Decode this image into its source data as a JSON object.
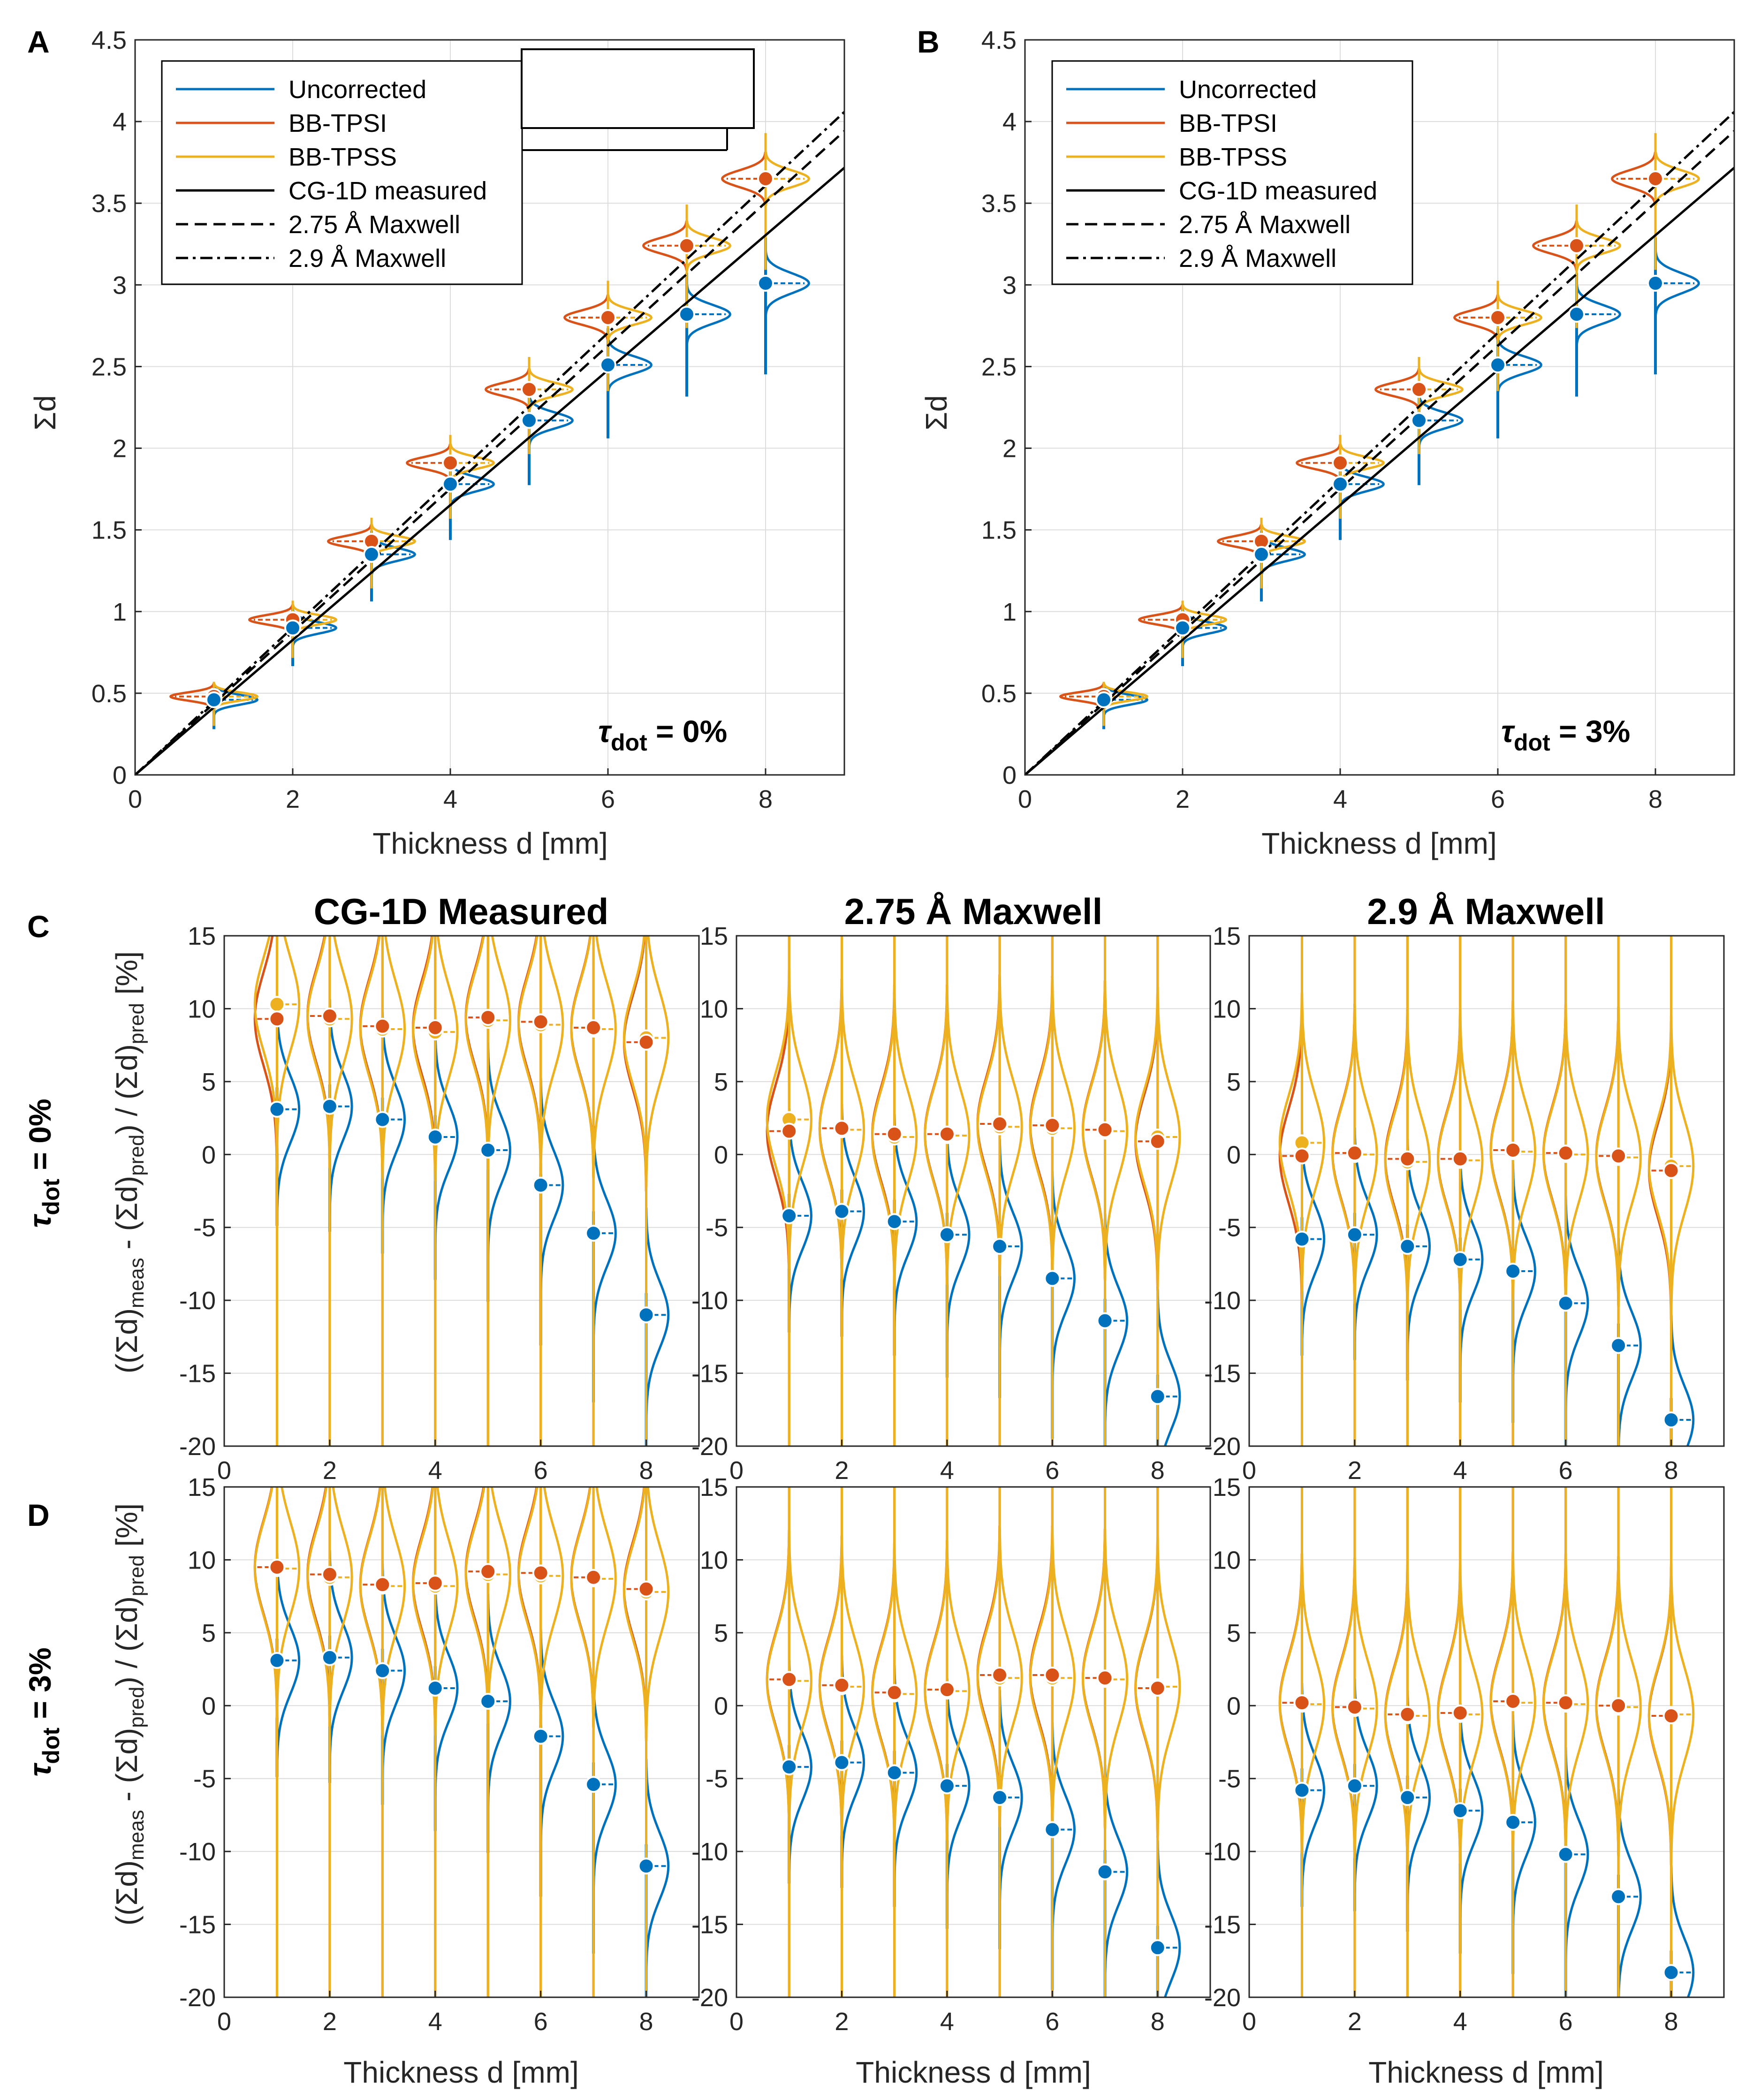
{
  "colors": {
    "uncorrected": "#0072BD",
    "bbtpsi": "#D95319",
    "bbtpss": "#EDB120",
    "black": "#000000",
    "grid": "#dcdcdc"
  },
  "labels": {
    "panel_a": "A",
    "panel_b": "B",
    "panel_c": "C",
    "panel_d": "D",
    "ylabel_top": "Σd",
    "xlabel": "Thickness d [mm]",
    "ylabel_bottom": "((Σd)meas - (Σd)pred) / (Σd)pred [%]",
    "ylabel_bottom_parts": {
      "open": "((Σd)",
      "meas": "meas",
      "mid": " - (Σd)",
      "pred1": "pred",
      "mid2": ") / (Σd)",
      "pred2": "pred",
      "close": " [%]"
    },
    "tau_a": "τdot = 0%",
    "tau_b": "τdot = 3%",
    "tau_parts": {
      "t": "τ",
      "sub": "dot",
      "eq0": " = 0%",
      "eq3": " = 3%"
    },
    "row_c": "τdot = 0%",
    "row_d": "τdot = 3%",
    "col_titles": [
      "CG-1D Measured",
      "2.75 Å Maxwell",
      "2.9 Å Maxwell"
    ]
  },
  "legend": [
    "Uncorrected",
    "BB-TPSI",
    "BB-TPSS",
    "CG-1D measured",
    "2.75 Å Maxwell",
    "2.9 Å Maxwell"
  ],
  "chart_data": [
    {
      "id": "A",
      "type": "scatter",
      "xlabel": "Thickness d [mm]",
      "ylabel": "Σd",
      "xlim": [
        0,
        9
      ],
      "ylim": [
        0,
        4.5
      ],
      "xticks": [
        0,
        2,
        4,
        6,
        8
      ],
      "yticks": [
        0,
        0.5,
        1,
        1.5,
        2,
        2.5,
        3,
        3.5,
        4,
        4.5
      ],
      "annotation": "τdot = 0%",
      "series": [
        {
          "name": "Uncorrected",
          "x": [
            1,
            2,
            3,
            4,
            5,
            6,
            7,
            8
          ],
          "values": [
            0.46,
            0.9,
            1.35,
            1.78,
            2.17,
            2.51,
            2.82,
            3.01
          ]
        },
        {
          "name": "BB-TPSI",
          "x": [
            1,
            2,
            3,
            4,
            5,
            6,
            7,
            8
          ],
          "values": [
            0.48,
            0.95,
            1.43,
            1.91,
            2.36,
            2.8,
            3.24,
            3.65
          ]
        },
        {
          "name": "BB-TPSS",
          "x": [
            1,
            2,
            3,
            4,
            5,
            6,
            7,
            8
          ],
          "values": [
            0.48,
            0.95,
            1.43,
            1.91,
            2.36,
            2.8,
            3.24,
            3.65
          ]
        }
      ],
      "lines": [
        {
          "name": "CG-1D measured",
          "slope": 0.413
        },
        {
          "name": "2.75 Å Maxwell",
          "slope": 0.438
        },
        {
          "name": "2.9 Å Maxwell",
          "slope": 0.451
        }
      ]
    },
    {
      "id": "B",
      "type": "scatter",
      "xlabel": "Thickness d [mm]",
      "ylabel": "Σd",
      "xlim": [
        0,
        9
      ],
      "ylim": [
        0,
        4.5
      ],
      "xticks": [
        0,
        2,
        4,
        6,
        8
      ],
      "yticks": [
        0,
        0.5,
        1,
        1.5,
        2,
        2.5,
        3,
        3.5,
        4,
        4.5
      ],
      "annotation": "τdot = 3%",
      "series": [
        {
          "name": "Uncorrected",
          "x": [
            1,
            2,
            3,
            4,
            5,
            6,
            7,
            8
          ],
          "values": [
            0.46,
            0.9,
            1.35,
            1.78,
            2.17,
            2.51,
            2.82,
            3.01
          ]
        },
        {
          "name": "BB-TPSI",
          "x": [
            1,
            2,
            3,
            4,
            5,
            6,
            7,
            8
          ],
          "values": [
            0.48,
            0.95,
            1.43,
            1.91,
            2.36,
            2.8,
            3.24,
            3.65
          ]
        },
        {
          "name": "BB-TPSS",
          "x": [
            1,
            2,
            3,
            4,
            5,
            6,
            7,
            8
          ],
          "values": [
            0.48,
            0.95,
            1.43,
            1.91,
            2.36,
            2.8,
            3.24,
            3.65
          ]
        }
      ],
      "lines": [
        {
          "name": "CG-1D measured",
          "slope": 0.413
        },
        {
          "name": "2.75 Å Maxwell",
          "slope": 0.438
        },
        {
          "name": "2.9 Å Maxwell",
          "slope": 0.451
        }
      ]
    },
    {
      "id": "C1",
      "type": "scatter",
      "title": "CG-1D Measured",
      "xlim": [
        0,
        9
      ],
      "ylim": [
        -20,
        15
      ],
      "xticks": [
        0,
        2,
        4,
        6,
        8
      ],
      "yticks": [
        -20,
        -15,
        -10,
        -5,
        0,
        5,
        10,
        15
      ],
      "series": [
        {
          "name": "Uncorrected",
          "x": [
            1,
            2,
            3,
            4,
            5,
            6,
            7,
            8
          ],
          "values": [
            3.1,
            3.3,
            2.4,
            1.2,
            0.3,
            -2.1,
            -5.4,
            -11.0
          ]
        },
        {
          "name": "BB-TPSI",
          "x": [
            1,
            2,
            3,
            4,
            5,
            6,
            7,
            8
          ],
          "values": [
            9.3,
            9.5,
            8.8,
            8.7,
            9.4,
            9.1,
            8.7,
            7.7
          ]
        },
        {
          "name": "BB-TPSS",
          "x": [
            1,
            2,
            3,
            4,
            5,
            6,
            7,
            8
          ],
          "values": [
            10.3,
            9.3,
            8.6,
            8.4,
            9.2,
            8.9,
            8.6,
            8.0
          ]
        }
      ]
    },
    {
      "id": "C2",
      "type": "scatter",
      "title": "2.75 Å Maxwell",
      "xlim": [
        0,
        9
      ],
      "ylim": [
        -20,
        15
      ],
      "xticks": [
        0,
        2,
        4,
        6,
        8
      ],
      "yticks": [
        -20,
        -15,
        -10,
        -5,
        0,
        5,
        10,
        15
      ],
      "series": [
        {
          "name": "Uncorrected",
          "x": [
            1,
            2,
            3,
            4,
            5,
            6,
            7,
            8
          ],
          "values": [
            -4.2,
            -3.9,
            -4.6,
            -5.5,
            -6.3,
            -8.5,
            -11.4,
            -16.6
          ]
        },
        {
          "name": "BB-TPSI",
          "x": [
            1,
            2,
            3,
            4,
            5,
            6,
            7,
            8
          ],
          "values": [
            1.6,
            1.8,
            1.4,
            1.4,
            2.1,
            2.0,
            1.7,
            0.9
          ]
        },
        {
          "name": "BB-TPSS",
          "x": [
            1,
            2,
            3,
            4,
            5,
            6,
            7,
            8
          ],
          "values": [
            2.4,
            1.7,
            1.2,
            1.3,
            1.9,
            1.8,
            1.6,
            1.2
          ]
        }
      ]
    },
    {
      "id": "C3",
      "type": "scatter",
      "title": "2.9 Å Maxwell",
      "xlim": [
        0,
        9
      ],
      "ylim": [
        -20,
        15
      ],
      "xticks": [
        0,
        2,
        4,
        6,
        8
      ],
      "yticks": [
        -20,
        -15,
        -10,
        -5,
        0,
        5,
        10,
        15
      ],
      "series": [
        {
          "name": "Uncorrected",
          "x": [
            1,
            2,
            3,
            4,
            5,
            6,
            7,
            8
          ],
          "values": [
            -5.8,
            -5.5,
            -6.3,
            -7.2,
            -8.0,
            -10.2,
            -13.1,
            -18.2
          ]
        },
        {
          "name": "BB-TPSI",
          "x": [
            1,
            2,
            3,
            4,
            5,
            6,
            7,
            8
          ],
          "values": [
            -0.1,
            0.1,
            -0.3,
            -0.3,
            0.3,
            0.1,
            -0.1,
            -1.1
          ]
        },
        {
          "name": "BB-TPSS",
          "x": [
            1,
            2,
            3,
            4,
            5,
            6,
            7,
            8
          ],
          "values": [
            0.8,
            0.0,
            -0.5,
            -0.4,
            0.2,
            0.0,
            -0.2,
            -0.8
          ]
        }
      ]
    },
    {
      "id": "D1",
      "type": "scatter",
      "xlim": [
        0,
        9
      ],
      "ylim": [
        -20,
        15
      ],
      "xlabel": "Thickness d [mm]",
      "xticks": [
        0,
        2,
        4,
        6,
        8
      ],
      "yticks": [
        -20,
        -15,
        -10,
        -5,
        0,
        5,
        10,
        15
      ],
      "series": [
        {
          "name": "Uncorrected",
          "x": [
            1,
            2,
            3,
            4,
            5,
            6,
            7,
            8
          ],
          "values": [
            3.1,
            3.3,
            2.4,
            1.2,
            0.3,
            -2.1,
            -5.4,
            -11.0
          ]
        },
        {
          "name": "BB-TPSI",
          "x": [
            1,
            2,
            3,
            4,
            5,
            6,
            7,
            8
          ],
          "values": [
            9.5,
            9.0,
            8.3,
            8.4,
            9.2,
            9.1,
            8.8,
            8.0
          ]
        },
        {
          "name": "BB-TPSS",
          "x": [
            1,
            2,
            3,
            4,
            5,
            6,
            7,
            8
          ],
          "values": [
            9.4,
            8.8,
            8.2,
            8.2,
            9.0,
            8.9,
            8.7,
            7.8
          ]
        }
      ]
    },
    {
      "id": "D2",
      "type": "scatter",
      "xlim": [
        0,
        9
      ],
      "ylim": [
        -20,
        15
      ],
      "xlabel": "Thickness d [mm]",
      "xticks": [
        0,
        2,
        4,
        6,
        8
      ],
      "yticks": [
        -20,
        -15,
        -10,
        -5,
        0,
        5,
        10,
        15
      ],
      "series": [
        {
          "name": "Uncorrected",
          "x": [
            1,
            2,
            3,
            4,
            5,
            6,
            7,
            8
          ],
          "values": [
            -4.2,
            -3.9,
            -4.6,
            -5.5,
            -6.3,
            -8.5,
            -11.4,
            -16.6
          ]
        },
        {
          "name": "BB-TPSI",
          "x": [
            1,
            2,
            3,
            4,
            5,
            6,
            7,
            8
          ],
          "values": [
            1.8,
            1.4,
            0.9,
            1.1,
            2.1,
            2.1,
            1.9,
            1.2
          ]
        },
        {
          "name": "BB-TPSS",
          "x": [
            1,
            2,
            3,
            4,
            5,
            6,
            7,
            8
          ],
          "values": [
            1.7,
            1.3,
            0.8,
            1.0,
            1.9,
            1.9,
            1.8,
            1.3
          ]
        }
      ]
    },
    {
      "id": "D3",
      "type": "scatter",
      "xlim": [
        0,
        9
      ],
      "ylim": [
        -20,
        15
      ],
      "xlabel": "Thickness d [mm]",
      "xticks": [
        0,
        2,
        4,
        6,
        8
      ],
      "yticks": [
        -20,
        -15,
        -10,
        -5,
        0,
        5,
        10,
        15
      ],
      "series": [
        {
          "name": "Uncorrected",
          "x": [
            1,
            2,
            3,
            4,
            5,
            6,
            7,
            8
          ],
          "values": [
            -5.8,
            -5.5,
            -6.3,
            -7.2,
            -8.0,
            -10.2,
            -13.1,
            -18.3
          ]
        },
        {
          "name": "BB-TPSI",
          "x": [
            1,
            2,
            3,
            4,
            5,
            6,
            7,
            8
          ],
          "values": [
            0.2,
            -0.1,
            -0.6,
            -0.5,
            0.3,
            0.2,
            0.0,
            -0.7
          ]
        },
        {
          "name": "BB-TPSS",
          "x": [
            1,
            2,
            3,
            4,
            5,
            6,
            7,
            8
          ],
          "values": [
            0.1,
            -0.2,
            -0.7,
            -0.6,
            0.2,
            0.1,
            -0.1,
            -0.6
          ]
        }
      ]
    }
  ]
}
